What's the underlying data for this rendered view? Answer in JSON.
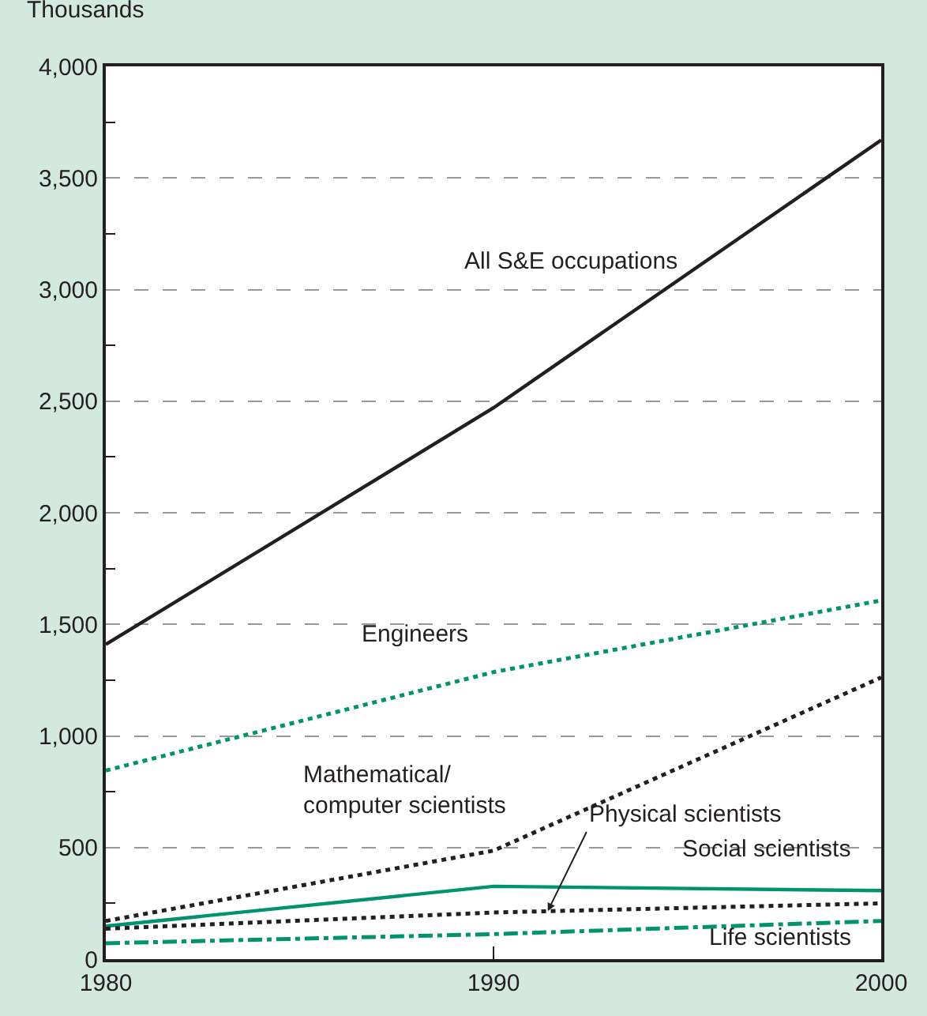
{
  "chart_data": {
    "type": "line",
    "ylabel": "Thousands",
    "x": [
      1980,
      1990,
      2000
    ],
    "series": [
      {
        "name": "All S&E occupations",
        "color": "#231f20",
        "line_style": "solid",
        "values": [
          1410,
          2470,
          3670
        ]
      },
      {
        "name": "Engineers",
        "color": "#00946e",
        "line_style": "dotted",
        "values": [
          845,
          1286,
          1607
        ]
      },
      {
        "name": "Mathematical/\ncomputer scientists",
        "color": "#231f20",
        "line_style": "dotted",
        "values": [
          171,
          486,
          1262
        ]
      },
      {
        "name": "Social scientists",
        "color": "#00946e",
        "line_style": "solid",
        "values": [
          148,
          326,
          307
        ]
      },
      {
        "name": "Physical scientists",
        "color": "#231f20",
        "line_style": "dotted",
        "values": [
          136,
          209,
          250
        ]
      },
      {
        "name": "Life scientists",
        "color": "#00946e",
        "line_style": "dashdot",
        "values": [
          71,
          112,
          171
        ]
      }
    ],
    "xlim": [
      1980,
      2000
    ],
    "xticks": [
      1980,
      1990,
      2000
    ],
    "ylim": [
      0,
      4000
    ],
    "yticks": [
      {
        "value": 0,
        "label": "0"
      },
      {
        "value": 500,
        "label": "500"
      },
      {
        "value": 1000,
        "label": "1,000"
      },
      {
        "value": 1500,
        "label": "1,500"
      },
      {
        "value": 2000,
        "label": "2,000"
      },
      {
        "value": 2500,
        "label": "2,500"
      },
      {
        "value": 3000,
        "label": "3,000"
      },
      {
        "value": 3500,
        "label": "3,500"
      },
      {
        "value": 4000,
        "label": "4,000"
      }
    ],
    "grid": "y",
    "legend": false,
    "marker": "none"
  }
}
